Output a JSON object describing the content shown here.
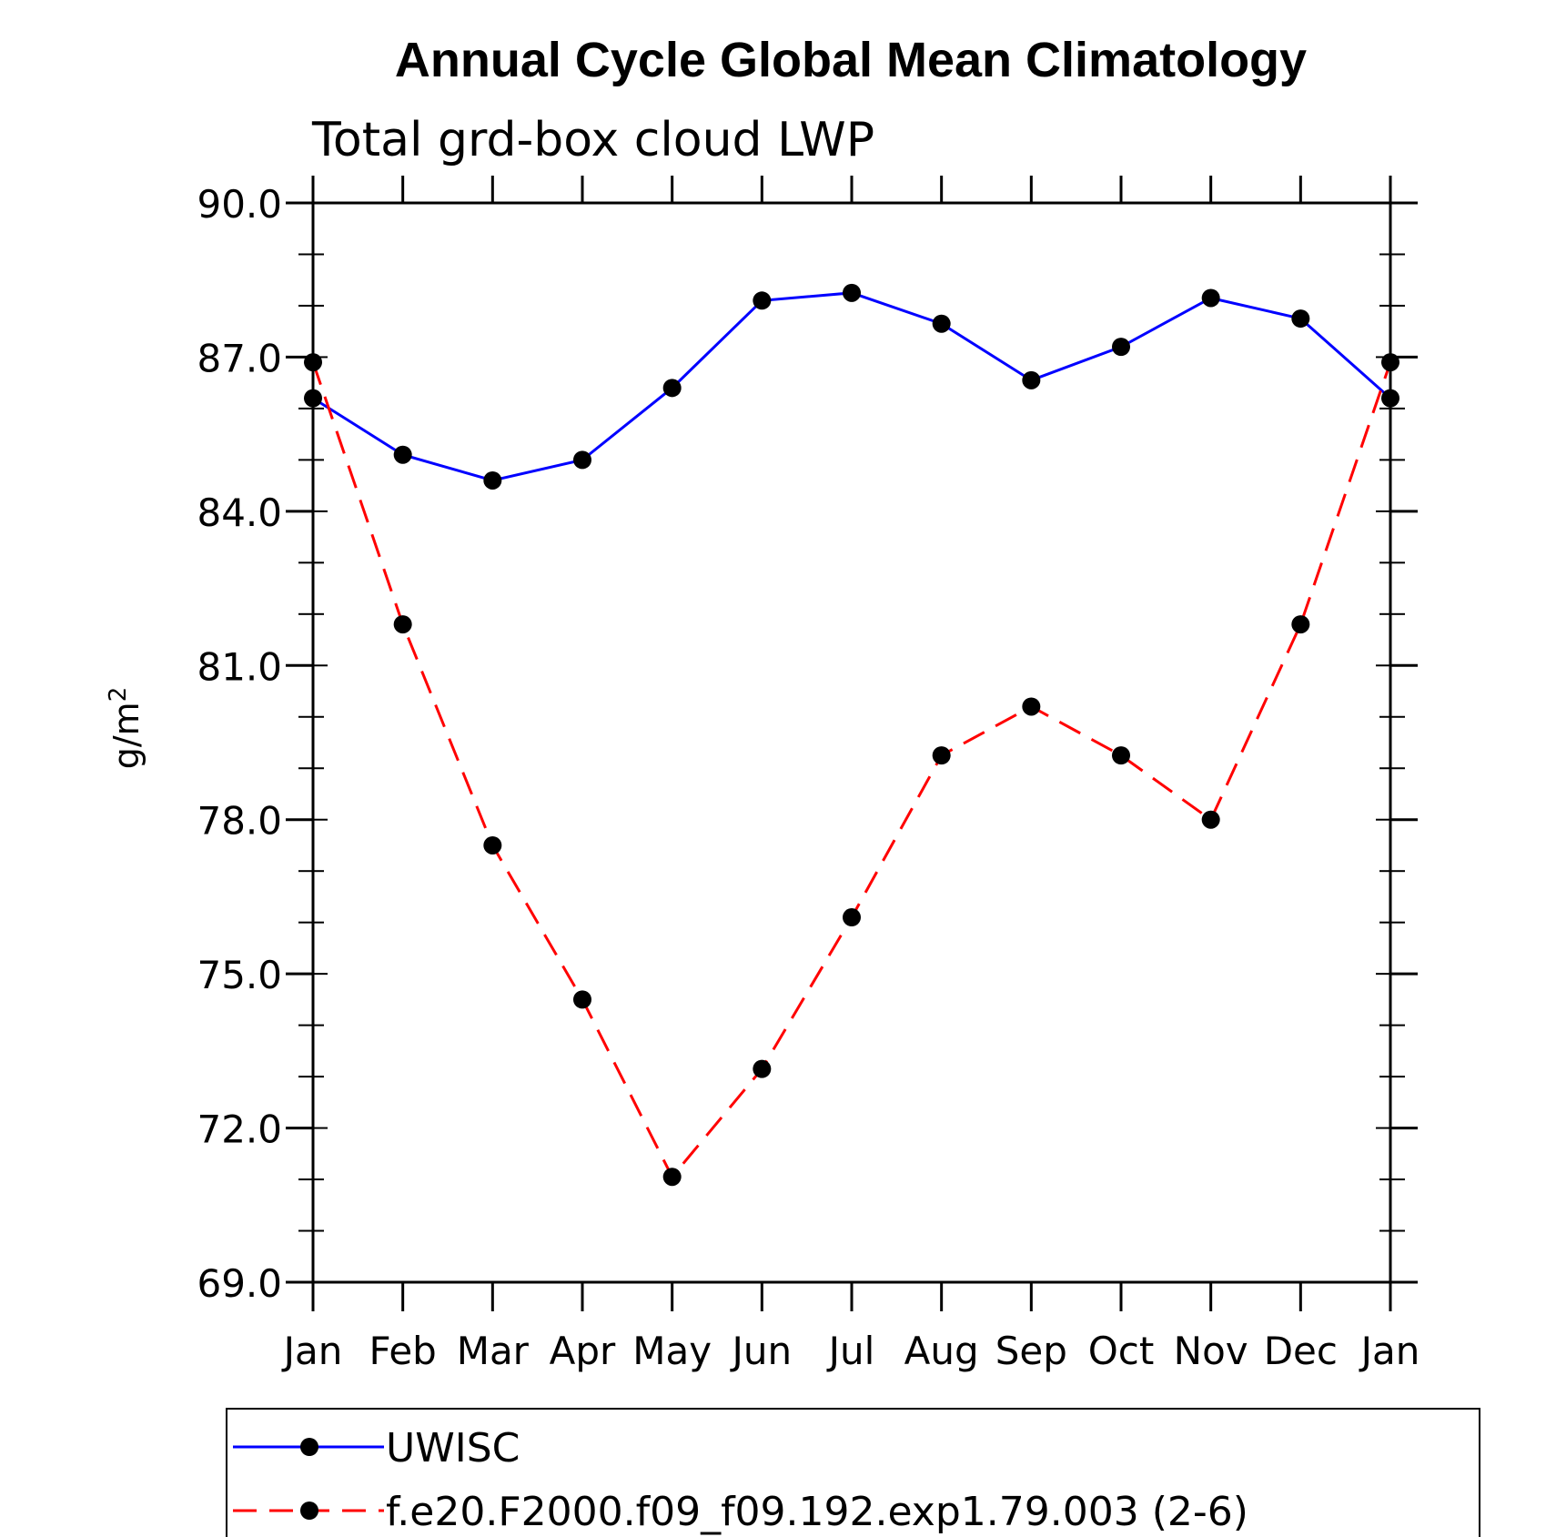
{
  "chart_data": {
    "type": "line",
    "title": "Annual Cycle Global Mean Climatology",
    "subtitle": "Total grd-box cloud LWP",
    "ylabel": "g/m",
    "ylabel_superscript": "2",
    "ylim": [
      69.0,
      90.0
    ],
    "yticks": [
      "69.0",
      "72.0",
      "75.0",
      "78.0",
      "81.0",
      "84.0",
      "87.0",
      "90.0"
    ],
    "categories": [
      "Jan",
      "Feb",
      "Mar",
      "Apr",
      "May",
      "Jun",
      "Jul",
      "Aug",
      "Sep",
      "Oct",
      "Nov",
      "Dec",
      "Jan"
    ],
    "series": [
      {
        "name": "UWISC",
        "color": "#0000ff",
        "dash": "solid",
        "values": [
          86.2,
          85.1,
          84.6,
          85.0,
          86.4,
          88.1,
          88.25,
          87.65,
          86.55,
          87.2,
          88.15,
          87.75,
          86.2
        ]
      },
      {
        "name": "f.e20.F2000.f09_f09.192.exp1.79.003 (2-6)",
        "color": "#ff0000",
        "dash": "dashed",
        "values": [
          86.9,
          81.8,
          77.5,
          74.5,
          71.05,
          73.15,
          76.1,
          79.25,
          80.2,
          79.25,
          78.0,
          81.8,
          86.9
        ]
      }
    ],
    "legend_position": "bottom"
  }
}
